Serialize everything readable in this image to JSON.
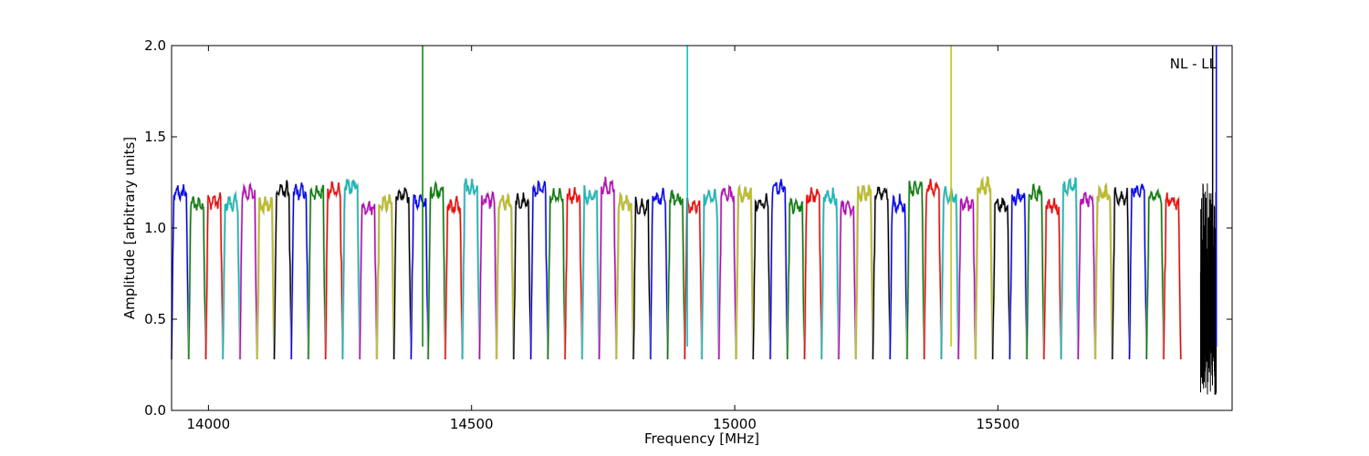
{
  "chart_data": {
    "type": "line",
    "title": "",
    "xlabel": "Frequency [MHz]",
    "ylabel": "Amplitude [arbitrary units]",
    "xlim": [
      13930,
      15945
    ],
    "ylim": [
      0.0,
      2.0
    ],
    "x_ticks": [
      14000,
      14500,
      15000,
      15500
    ],
    "x_tick_labels": [
      "14000",
      "14500",
      "15000",
      "15500"
    ],
    "y_ticks": [
      0.0,
      0.5,
      1.0,
      1.5,
      2.0
    ],
    "y_tick_labels": [
      "0.0",
      "0.5",
      "1.0",
      "1.5",
      "2.0"
    ],
    "grid": false,
    "annotation": "NL - LL",
    "colors": [
      "#0000ff",
      "#008000",
      "#ff0000",
      "#00bfbf",
      "#bf00bf",
      "#bfbf00",
      "#000000"
    ],
    "band": {
      "start": 13930,
      "width": 32.5,
      "count": 59,
      "plateau": 1.18,
      "trough": 0.28
    },
    "spikes": [
      {
        "x": 14407,
        "color": "#008000",
        "top": 2.0
      },
      {
        "x": 14910,
        "color": "#00bfbf",
        "top": 2.0
      },
      {
        "x": 15411,
        "color": "#bfbf00",
        "top": 2.0
      },
      {
        "x": 15908,
        "color": "#000000",
        "top": 2.0
      },
      {
        "x": 15915,
        "color": "#0000ff",
        "top": 2.0
      }
    ],
    "noise_region": {
      "x_start": 15885,
      "x_end": 15915,
      "color": "#000000"
    }
  }
}
